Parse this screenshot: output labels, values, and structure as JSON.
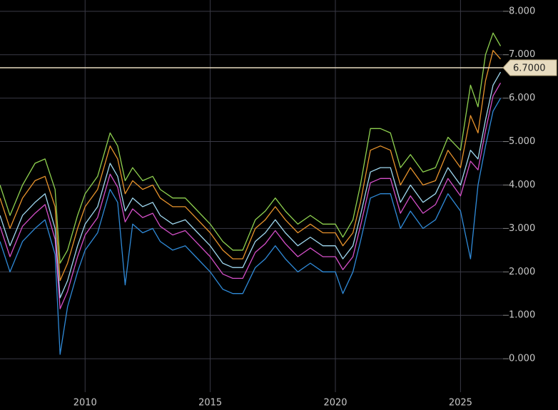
{
  "chart_data": {
    "type": "line",
    "x": [
      2006.6,
      2007.0,
      2007.5,
      2008.0,
      2008.4,
      2008.8,
      2009.0,
      2009.3,
      2009.7,
      2010.0,
      2010.5,
      2011.0,
      2011.3,
      2011.6,
      2011.9,
      2012.3,
      2012.7,
      2013.0,
      2013.5,
      2014.0,
      2014.5,
      2015.0,
      2015.5,
      2015.9,
      2016.3,
      2016.8,
      2017.2,
      2017.6,
      2018.0,
      2018.5,
      2019.0,
      2019.5,
      2020.0,
      2020.3,
      2020.7,
      2021.0,
      2021.4,
      2021.8,
      2022.2,
      2022.6,
      2023.0,
      2023.5,
      2024.0,
      2024.5,
      2025.0,
      2025.4,
      2025.7,
      2026.0,
      2026.3,
      2026.6
    ],
    "series": [
      {
        "color": "#8fd14f",
        "values": [
          4.0,
          3.3,
          4.0,
          4.5,
          4.6,
          3.9,
          2.2,
          2.5,
          3.3,
          3.8,
          4.2,
          5.2,
          4.9,
          4.1,
          4.4,
          4.1,
          4.2,
          3.9,
          3.7,
          3.7,
          3.4,
          3.1,
          2.7,
          2.5,
          2.5,
          3.2,
          3.4,
          3.7,
          3.4,
          3.1,
          3.3,
          3.1,
          3.1,
          2.8,
          3.2,
          4.0,
          5.3,
          5.3,
          5.2,
          4.4,
          4.7,
          4.3,
          4.4,
          5.1,
          4.8,
          6.3,
          5.8,
          7.0,
          7.5,
          7.2
        ]
      },
      {
        "color": "#e8932c",
        "values": [
          3.7,
          3.0,
          3.7,
          4.1,
          4.2,
          3.5,
          1.8,
          2.2,
          3.0,
          3.5,
          3.9,
          4.9,
          4.6,
          3.8,
          4.1,
          3.9,
          4.0,
          3.7,
          3.5,
          3.5,
          3.2,
          2.9,
          2.5,
          2.3,
          2.3,
          3.0,
          3.2,
          3.5,
          3.2,
          2.9,
          3.1,
          2.9,
          2.9,
          2.6,
          2.9,
          3.6,
          4.8,
          4.9,
          4.8,
          4.0,
          4.4,
          4.0,
          4.1,
          4.8,
          4.4,
          5.6,
          5.2,
          6.4,
          7.1,
          6.9
        ]
      },
      {
        "color": "#9fd8f0",
        "values": [
          3.3,
          2.6,
          3.3,
          3.6,
          3.8,
          3.0,
          1.4,
          1.8,
          2.6,
          3.1,
          3.5,
          4.5,
          4.2,
          3.4,
          3.7,
          3.5,
          3.6,
          3.3,
          3.1,
          3.2,
          2.9,
          2.6,
          2.2,
          2.1,
          2.1,
          2.7,
          2.9,
          3.2,
          2.9,
          2.6,
          2.8,
          2.6,
          2.6,
          2.3,
          2.6,
          3.3,
          4.3,
          4.4,
          4.4,
          3.6,
          4.0,
          3.6,
          3.8,
          4.4,
          4.0,
          4.8,
          4.6,
          5.5,
          6.3,
          6.6
        ]
      },
      {
        "color": "#d44fc8",
        "values": [
          3.05,
          2.35,
          3.05,
          3.35,
          3.55,
          2.75,
          1.15,
          1.55,
          2.35,
          2.85,
          3.25,
          4.25,
          3.95,
          3.15,
          3.45,
          3.25,
          3.35,
          3.05,
          2.85,
          2.95,
          2.65,
          2.35,
          1.95,
          1.85,
          1.85,
          2.45,
          2.65,
          2.95,
          2.65,
          2.35,
          2.55,
          2.35,
          2.35,
          2.05,
          2.35,
          3.05,
          4.05,
          4.15,
          4.15,
          3.35,
          3.75,
          3.35,
          3.55,
          4.15,
          3.75,
          4.55,
          4.35,
          5.25,
          6.05,
          6.35
        ]
      },
      {
        "color": "#2f8ad8",
        "values": [
          2.7,
          2.0,
          2.7,
          3.0,
          3.2,
          2.4,
          0.1,
          1.2,
          2.0,
          2.5,
          2.9,
          3.9,
          3.6,
          1.7,
          3.1,
          2.9,
          3.0,
          2.7,
          2.5,
          2.6,
          2.3,
          2.0,
          1.6,
          1.5,
          1.5,
          2.1,
          2.3,
          2.6,
          2.3,
          2.0,
          2.2,
          2.0,
          2.0,
          1.5,
          2.0,
          2.7,
          3.7,
          3.8,
          3.8,
          3.0,
          3.4,
          3.0,
          3.2,
          3.8,
          3.4,
          2.3,
          4.0,
          4.9,
          5.7,
          6.0
        ]
      }
    ],
    "xlim": [
      2006.6,
      2026.7
    ],
    "xticks": [
      2010,
      2015,
      2020,
      2025
    ],
    "ylim": [
      -0.77,
      8.26
    ],
    "yticks": [
      {
        "value": 0,
        "label": "0.000"
      },
      {
        "value": 1,
        "label": "1.000"
      },
      {
        "value": 2,
        "label": "2.000"
      },
      {
        "value": 3,
        "label": "3.000"
      },
      {
        "value": 4,
        "label": "4.000"
      },
      {
        "value": 5,
        "label": "5.000"
      },
      {
        "value": 6,
        "label": "6.000"
      },
      {
        "value": 7,
        "label": "7.000"
      },
      {
        "value": 8,
        "label": "8.000"
      }
    ],
    "grid": true,
    "price_line": {
      "value": 6.7,
      "label": "6.7000",
      "color": "#e8dcc0"
    }
  }
}
